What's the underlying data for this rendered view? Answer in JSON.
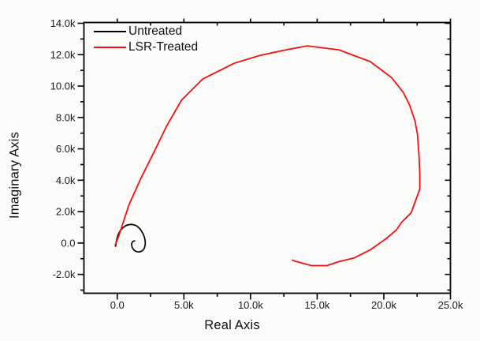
{
  "chart_data": {
    "type": "line",
    "title": "",
    "xlabel": "Real Axis",
    "ylabel": "Imaginary Axis",
    "xlim": [
      -2500,
      25000
    ],
    "ylim": [
      -3200,
      14050
    ],
    "grid": false,
    "legend_position": "top-left-inside",
    "axis_color": "#000000",
    "tick_label_color": "#1a1a1a",
    "x_ticks": {
      "values": [
        0,
        5000,
        10000,
        15000,
        20000,
        25000
      ],
      "labels": [
        "0.0",
        "5.0k",
        "10.0k",
        "15.0k",
        "20.0k",
        "25.0k"
      ],
      "minor": [
        2500,
        7500,
        12500,
        17500,
        22500
      ]
    },
    "y_ticks": {
      "values": [
        14000,
        12000,
        10000,
        8000,
        6000,
        4000,
        2000,
        0,
        -2000
      ],
      "labels": [
        "14.0k",
        "12.0k",
        "10.0k",
        "8.0k",
        "6.0k",
        "4.0k",
        "2.0k",
        "0.0",
        "-2.0k"
      ],
      "minor": [
        13000,
        11000,
        9000,
        7000,
        5000,
        3000,
        1000,
        -1000,
        -3000
      ]
    },
    "series": [
      {
        "name": "Untreated",
        "color": "#000000",
        "stroke_width": 1.7,
        "smooth": true,
        "points": [
          [
            -120,
            -210
          ],
          [
            -60,
            150
          ],
          [
            160,
            700
          ],
          [
            560,
            1060
          ],
          [
            1000,
            1180
          ],
          [
            1450,
            1090
          ],
          [
            1800,
            790
          ],
          [
            2030,
            380
          ],
          [
            2100,
            -40
          ],
          [
            1980,
            -400
          ],
          [
            1700,
            -560
          ],
          [
            1380,
            -520
          ],
          [
            1150,
            -330
          ],
          [
            1080,
            -80
          ],
          [
            1160,
            90
          ],
          [
            1300,
            140
          ]
        ]
      },
      {
        "name": "LSR-Treated",
        "color": "#f50f0f",
        "stroke_width": 1.8,
        "smooth": false,
        "points": [
          [
            -150,
            -120
          ],
          [
            100,
            420
          ],
          [
            870,
            2420
          ],
          [
            1750,
            4080
          ],
          [
            2760,
            5790
          ],
          [
            3700,
            7440
          ],
          [
            4820,
            9100
          ],
          [
            6410,
            10450
          ],
          [
            6770,
            10600
          ],
          [
            8770,
            11450
          ],
          [
            10720,
            11960
          ],
          [
            12670,
            12310
          ],
          [
            14260,
            12560
          ],
          [
            16620,
            12310
          ],
          [
            18980,
            11560
          ],
          [
            20570,
            10550
          ],
          [
            21460,
            9600
          ],
          [
            21930,
            8800
          ],
          [
            22340,
            7790
          ],
          [
            22520,
            6940
          ],
          [
            22640,
            5590
          ],
          [
            22700,
            4430
          ],
          [
            22700,
            3430
          ],
          [
            22050,
            1920
          ],
          [
            21340,
            1320
          ],
          [
            20930,
            820
          ],
          [
            20160,
            270
          ],
          [
            18980,
            -440
          ],
          [
            17800,
            -940
          ],
          [
            16620,
            -1190
          ],
          [
            15730,
            -1440
          ],
          [
            14560,
            -1440
          ],
          [
            13260,
            -1140
          ],
          [
            13140,
            -1090
          ]
        ]
      }
    ]
  }
}
